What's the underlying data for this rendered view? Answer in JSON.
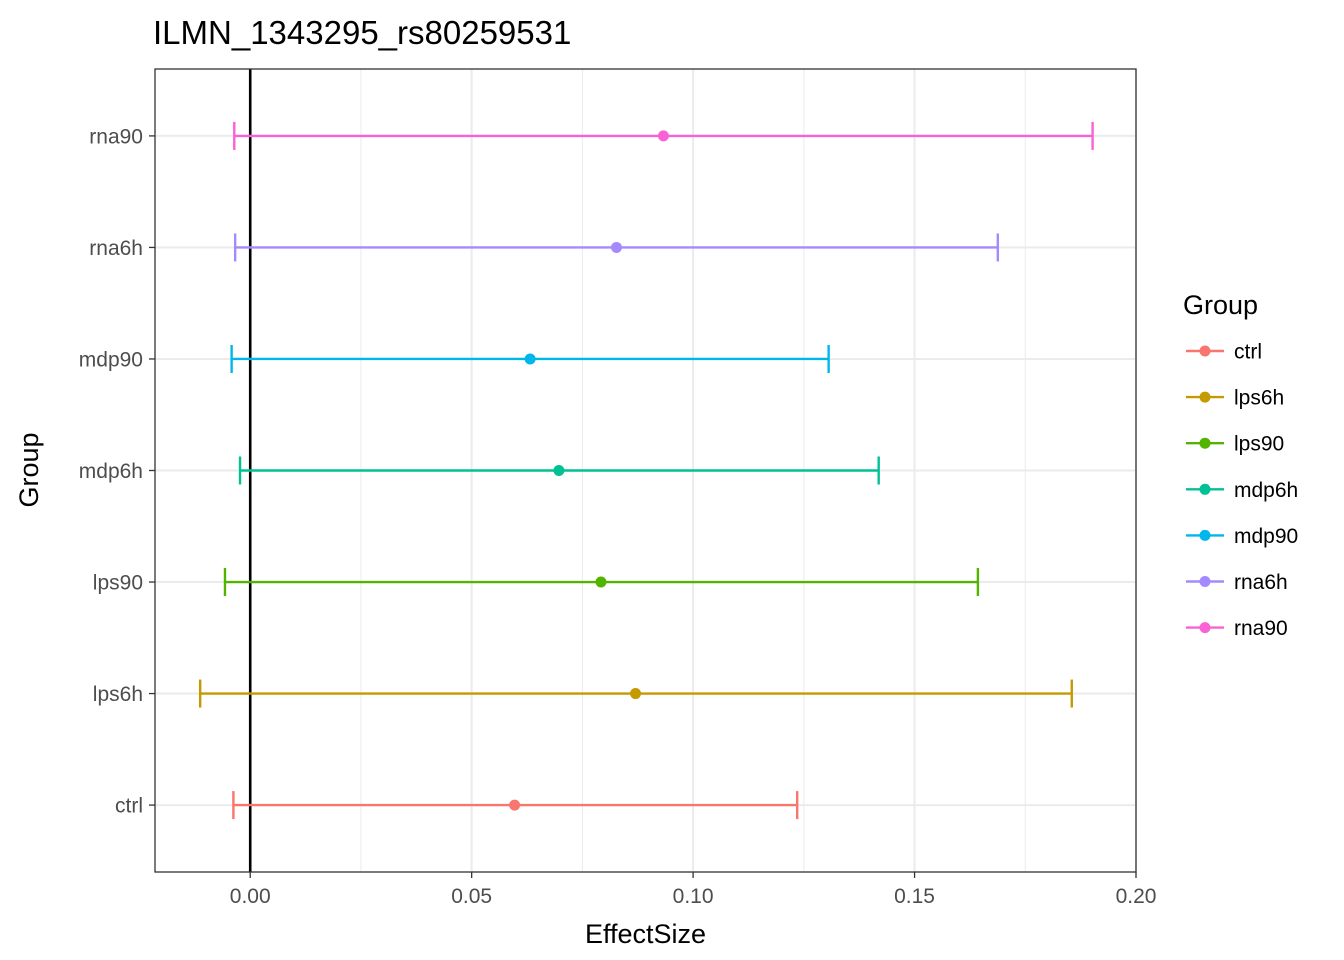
{
  "chart_data": {
    "type": "errorbar",
    "title": "ILMN_1343295_rs80259531",
    "xlabel": "EffectSize",
    "ylabel": "Group",
    "xlim": [
      -0.0215,
      0.2
    ],
    "x_ticks": [
      0.0,
      0.05,
      0.1,
      0.15,
      0.2
    ],
    "x_tick_labels": [
      "0.00",
      "0.05",
      "0.10",
      "0.15",
      "0.20"
    ],
    "x_minor_ticks": [
      0.025,
      0.075,
      0.125,
      0.175
    ],
    "reference_line_x": 0,
    "grid": true,
    "legend": {
      "title": "Group",
      "position": "right"
    },
    "series": [
      {
        "name": "ctrl",
        "estimate": 0.0597,
        "lower": -0.0038,
        "upper": 0.1235,
        "color": "#F8766D"
      },
      {
        "name": "lps6h",
        "estimate": 0.087,
        "lower": -0.0113,
        "upper": 0.1855,
        "color": "#C49A00"
      },
      {
        "name": "lps90",
        "estimate": 0.0792,
        "lower": -0.0057,
        "upper": 0.1643,
        "color": "#53B400"
      },
      {
        "name": "mdp6h",
        "estimate": 0.0697,
        "lower": -0.0023,
        "upper": 0.1419,
        "color": "#00C094"
      },
      {
        "name": "mdp90",
        "estimate": 0.0632,
        "lower": -0.0042,
        "upper": 0.1306,
        "color": "#00B6EB"
      },
      {
        "name": "rna6h",
        "estimate": 0.0827,
        "lower": -0.0034,
        "upper": 0.1688,
        "color": "#A58AFF"
      },
      {
        "name": "rna90",
        "estimate": 0.0933,
        "lower": -0.0036,
        "upper": 0.1902,
        "color": "#FB61D7"
      }
    ]
  }
}
